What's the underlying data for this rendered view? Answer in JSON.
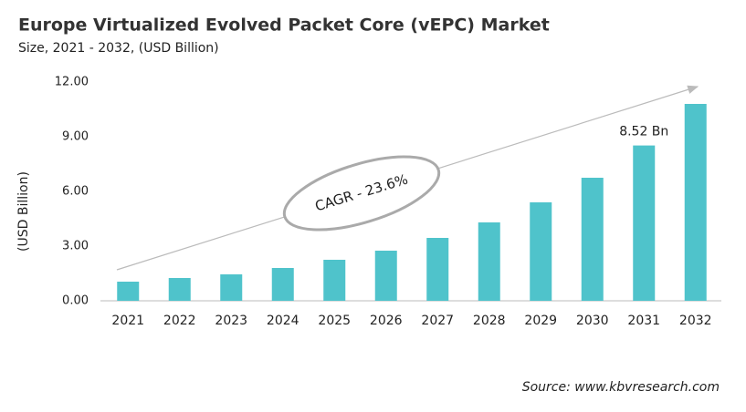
{
  "chart_data": {
    "type": "bar",
    "title": "Europe Virtualized Evolved Packet Core (vEPC) Market",
    "subtitle": "Size, 2021 - 2032, (USD Billion)",
    "y_label": "(USD Billion)",
    "annotation": "CAGR - 23.6%",
    "source": "Source: www.kbvresearch.com",
    "categories": [
      "2021",
      "2022",
      "2023",
      "2024",
      "2025",
      "2026",
      "2027",
      "2028",
      "2029",
      "2030",
      "2031",
      "2032"
    ],
    "values": [
      1.05,
      1.25,
      1.45,
      1.8,
      2.25,
      2.75,
      3.45,
      4.3,
      5.4,
      6.75,
      8.52,
      10.8
    ],
    "value_labels": [
      null,
      null,
      null,
      null,
      null,
      null,
      null,
      null,
      null,
      null,
      "8.52 Bn",
      null
    ],
    "color": "#4fc3cb",
    "ylim": [
      0,
      12
    ],
    "yticks": [
      {
        "value": 0,
        "label": "0.00"
      },
      {
        "value": 3,
        "label": "3.00"
      },
      {
        "value": 6,
        "label": "6.00"
      },
      {
        "value": 9,
        "label": "9.00"
      },
      {
        "value": 12,
        "label": "12.00"
      }
    ],
    "grid": false
  }
}
